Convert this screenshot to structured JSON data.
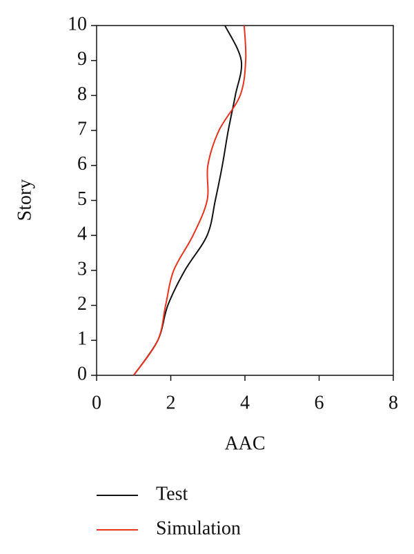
{
  "chart_data": {
    "type": "line",
    "xlabel": "AAC",
    "ylabel": "Story",
    "y": [
      0,
      1,
      2,
      3,
      4,
      5,
      6,
      7,
      8,
      9,
      10
    ],
    "series": [
      {
        "name": "Test",
        "color": "#111111",
        "values": [
          1.0,
          1.65,
          1.92,
          2.38,
          2.98,
          3.2,
          3.39,
          3.55,
          3.74,
          3.9,
          3.46
        ]
      },
      {
        "name": "Simulation",
        "color": "#e8321e",
        "values": [
          1.0,
          1.65,
          1.86,
          2.08,
          2.6,
          2.98,
          3.0,
          3.3,
          3.87,
          4.02,
          3.98
        ]
      }
    ],
    "xlim": [
      0,
      8
    ],
    "xticks": [
      0,
      2,
      4,
      6,
      8
    ],
    "ylim": [
      0,
      10
    ],
    "yticks": [
      0,
      1,
      2,
      3,
      4,
      5,
      6,
      7,
      8,
      9,
      10
    ],
    "grid": false,
    "legend": "bottom"
  }
}
